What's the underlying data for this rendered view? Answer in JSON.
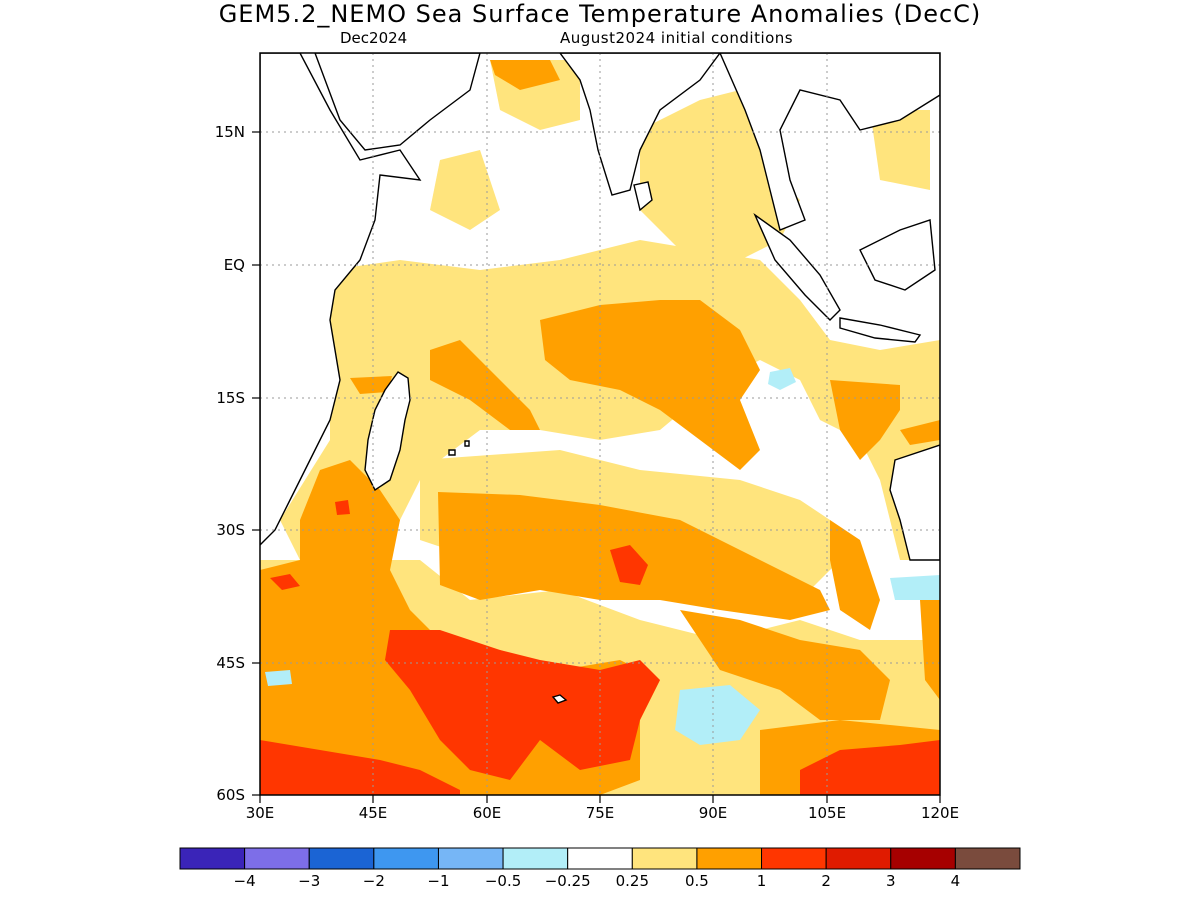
{
  "header": {
    "title": "GEM5.2_NEMO Sea Surface Temperature Anomalies (DecC)",
    "valid_month": "Dec2024",
    "initial_conditions": "August2024 initial conditions"
  },
  "map": {
    "lat_labels": [
      "15N",
      "EQ",
      "15S",
      "30S",
      "45S",
      "60S"
    ],
    "lon_labels": [
      "30E",
      "45E",
      "60E",
      "75E",
      "90E",
      "105E",
      "120E"
    ],
    "gridlines": "dotted",
    "region": "Indian Ocean"
  },
  "legend": {
    "colors": [
      "#3a24b8",
      "#7d6ee8",
      "#1b64d4",
      "#3e97f0",
      "#76b6f6",
      "#b2eef8",
      "#ffffff",
      "#ffe47d",
      "#ffa000",
      "#ff3600",
      "#e01b00",
      "#a60000",
      "#7a4b3d"
    ],
    "labels": [
      "−4",
      "−3",
      "−2",
      "−1",
      "−0.5",
      "−0.25",
      "0.25",
      "0.5",
      "1",
      "2",
      "3",
      "4"
    ]
  }
}
